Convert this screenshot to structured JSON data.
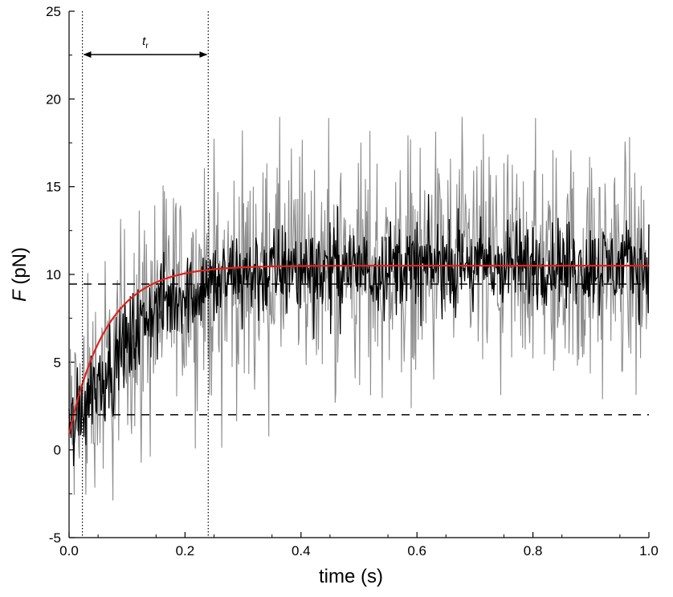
{
  "chart_data": {
    "type": "line",
    "xlabel": "time (s)",
    "ylabel_symbol": "F",
    "ylabel_unit": " (pN)",
    "xlim": [
      0.0,
      1.0
    ],
    "ylim": [
      -5,
      25
    ],
    "x_ticks": [
      "0.0",
      "0.2",
      "0.4",
      "0.6",
      "0.8",
      "1.0"
    ],
    "y_ticks": [
      "-5",
      "0",
      "5",
      "10",
      "15",
      "20",
      "25"
    ],
    "grid": false,
    "annotation": {
      "symbol": "t",
      "subscript": "r",
      "x_start": 0.023,
      "x_end": 0.24
    },
    "vertical_dotted_lines_x": [
      0.023,
      0.24
    ],
    "horizontal_dashed_lines_y": [
      2.0,
      9.45
    ],
    "series": [
      {
        "style": "gray-noisy-trace",
        "color": "#8c8c8c",
        "amplitude": 4.2,
        "x_sampled": [
          0.0,
          0.02,
          0.05,
          0.08,
          0.1,
          0.12,
          0.15,
          0.2,
          0.25,
          0.3,
          0.4,
          0.5,
          0.6,
          0.7,
          0.8,
          0.9,
          1.0
        ],
        "y_sampled": [
          1.0,
          2.5,
          4.0,
          5.0,
          6.0,
          7.0,
          8.0,
          9.0,
          9.5,
          10.0,
          10.3,
          10.4,
          10.5,
          10.5,
          10.5,
          10.5,
          10.5
        ]
      },
      {
        "style": "black-averaged-trace",
        "color": "#000000",
        "amplitude": 1.6,
        "x_sampled": [
          0.0,
          0.02,
          0.05,
          0.08,
          0.1,
          0.12,
          0.15,
          0.2,
          0.25,
          0.3,
          0.4,
          0.5,
          0.6,
          0.7,
          0.8,
          0.9,
          1.0
        ],
        "y_sampled": [
          1.0,
          2.5,
          4.0,
          5.0,
          6.0,
          7.0,
          8.0,
          9.0,
          9.5,
          10.0,
          10.3,
          10.4,
          10.5,
          10.5,
          10.5,
          10.5,
          10.5
        ]
      },
      {
        "style": "red-exponential-fit",
        "color": "#e0231c",
        "model": "F = F0 + (Fmax - F0) * (1 - exp(-t / tau))",
        "F0": 0.9,
        "Fmax": 10.5,
        "tau": 0.065
      }
    ]
  }
}
